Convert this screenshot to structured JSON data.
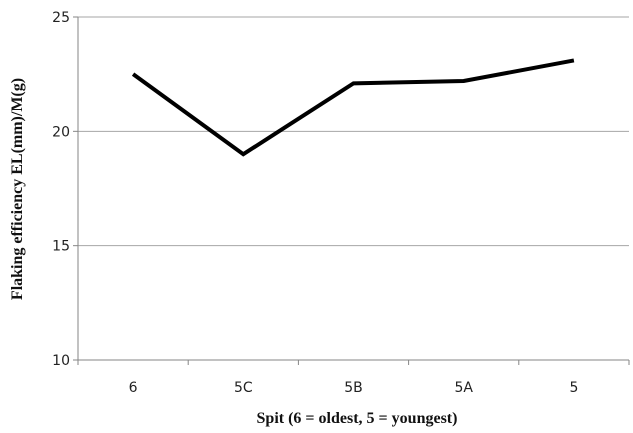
{
  "chart_data": {
    "type": "line",
    "categories": [
      "6",
      "5C",
      "5B",
      "5A",
      "5"
    ],
    "series": [
      {
        "values": [
          22.5,
          19.0,
          22.1,
          22.2,
          23.1
        ]
      }
    ],
    "xlabel": "Spit (6 = oldest, 5 = youngest)",
    "ylabel": "Flaking efficiency EL(mm)/M(g)",
    "ylim": [
      10,
      25
    ],
    "yticks": [
      10,
      15,
      20,
      25
    ],
    "grid": true,
    "line_color": "#000000",
    "grid_color": "#a6a6a6",
    "axis_color": "#868686"
  }
}
